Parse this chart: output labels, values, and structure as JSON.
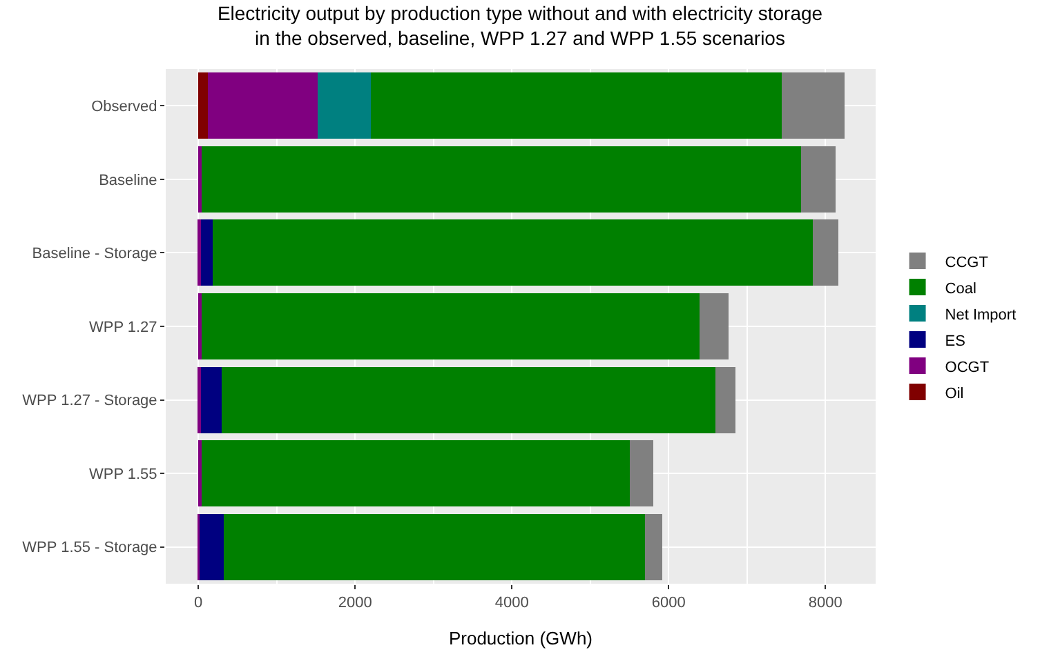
{
  "chart_data": {
    "type": "bar",
    "orientation": "horizontal",
    "stacked": true,
    "title": "Electricity output by production type without and with electricity storage\nin the observed, baseline, WPP 1.27 and WPP 1.55 scenarios",
    "xlabel": "Production (GWh)",
    "categories": [
      "Observed",
      "Baseline",
      "Baseline - Storage",
      "WPP 1.27",
      "WPP 1.27 - Storage",
      "WPP 1.55",
      "WPP 1.55 - Storage"
    ],
    "series": [
      {
        "name": "Oil",
        "color": "#800000",
        "values": [
          120,
          0,
          0,
          0,
          0,
          0,
          0
        ]
      },
      {
        "name": "OCGT",
        "color": "#800080",
        "values": [
          1400,
          45,
          30,
          45,
          30,
          45,
          15
        ]
      },
      {
        "name": "ES",
        "color": "#000080",
        "values": [
          0,
          0,
          155,
          0,
          270,
          0,
          310
        ]
      },
      {
        "name": "Net Import",
        "color": "#008080",
        "values": [
          680,
          0,
          0,
          0,
          0,
          0,
          0
        ]
      },
      {
        "name": "Coal",
        "color": "#008000",
        "values": [
          5240,
          7645,
          7655,
          6350,
          6295,
          5460,
          5375
        ]
      },
      {
        "name": "CCGT",
        "color": "#808080",
        "values": [
          800,
          440,
          325,
          370,
          260,
          300,
          215
        ]
      }
    ],
    "xlim": [
      -415,
      8640
    ],
    "xticks": [
      0,
      2000,
      4000,
      6000,
      8000
    ],
    "grid": true,
    "legend": "right"
  }
}
